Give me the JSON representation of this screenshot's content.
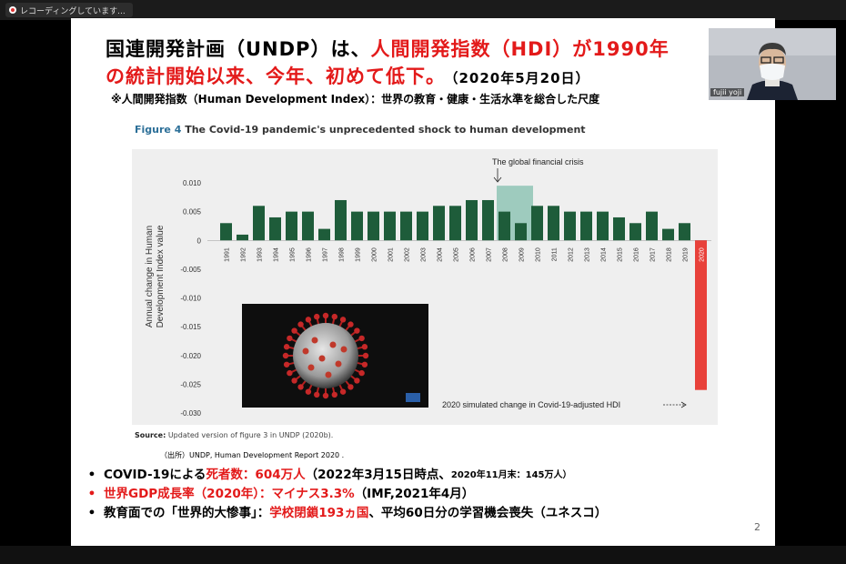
{
  "recording": {
    "label": "レコーディングしています..."
  },
  "slide": {
    "title_line1_black": "国連開発計画（UNDP）は、",
    "title_line1_red": "人間開発指数（HDI）が1990年",
    "title_line2_red": "の統計開始以来、今年、初めて低下。",
    "title_date": "（2020年5月20日）",
    "subtitle": "※人間開発指数（Human Development Index）：世界の教育・健康・生活水準を総合した尺度",
    "figure_label": "Figure 4",
    "figure_title": "The Covid-19 pandemic's unprecedented shock to human development",
    "source_label": "Source:",
    "source_text": "Updated version of figure 3 in UNDP (2020b).",
    "citation": "（出所）UNDP, Human Development Report 2020 .",
    "page_number": "2",
    "bullets": [
      {
        "black1": "COVID-19による",
        "red": "死者数：604万人",
        "black2": "（2022年3月15日時点、",
        "small": "2020年11月末：145万人）"
      },
      {
        "red": "世界GDP成長率（2020年）：マイナス3.3%",
        "black2": "（IMF,2021年4月）"
      },
      {
        "black1": "教育面での「世界的大惨事」：",
        "red": "学校閉鎖193ヵ国",
        "black2": "、平均60日分の学習機会喪失（ユネスコ）"
      }
    ]
  },
  "chart_data": {
    "type": "bar",
    "ylabel": "Annual change in Human Development Index value",
    "ylim": [
      -0.03,
      0.01
    ],
    "yticks": [
      "0.010",
      "0.005",
      "0",
      "-0.005",
      "-0.010",
      "-0.015",
      "-0.020",
      "-0.025",
      "-0.030"
    ],
    "categories": [
      "1991",
      "1992",
      "1993",
      "1994",
      "1995",
      "1996",
      "1997",
      "1998",
      "1999",
      "2000",
      "2001",
      "2002",
      "2003",
      "2004",
      "2005",
      "2006",
      "2007",
      "2008",
      "2009",
      "2010",
      "2011",
      "2012",
      "2013",
      "2014",
      "2015",
      "2016",
      "2017",
      "2018",
      "2019",
      "2020"
    ],
    "values": [
      0.003,
      0.001,
      0.006,
      0.004,
      0.005,
      0.005,
      0.002,
      0.007,
      0.005,
      0.005,
      0.005,
      0.005,
      0.005,
      0.006,
      0.006,
      0.007,
      0.007,
      0.005,
      0.003,
      0.006,
      0.006,
      0.005,
      0.005,
      0.005,
      0.004,
      0.003,
      0.005,
      0.002,
      0.003,
      -0.026
    ],
    "bar_color": "#1e5c3a",
    "highlight_color": "#e8413a",
    "shade_color": "#8fc4b5",
    "annotation_crisis": "The global financial crisis",
    "annotation_2020": "2020 simulated change in Covid-19-adjusted HDI",
    "grid": false
  },
  "camera": {
    "name": "fujii yoji"
  }
}
